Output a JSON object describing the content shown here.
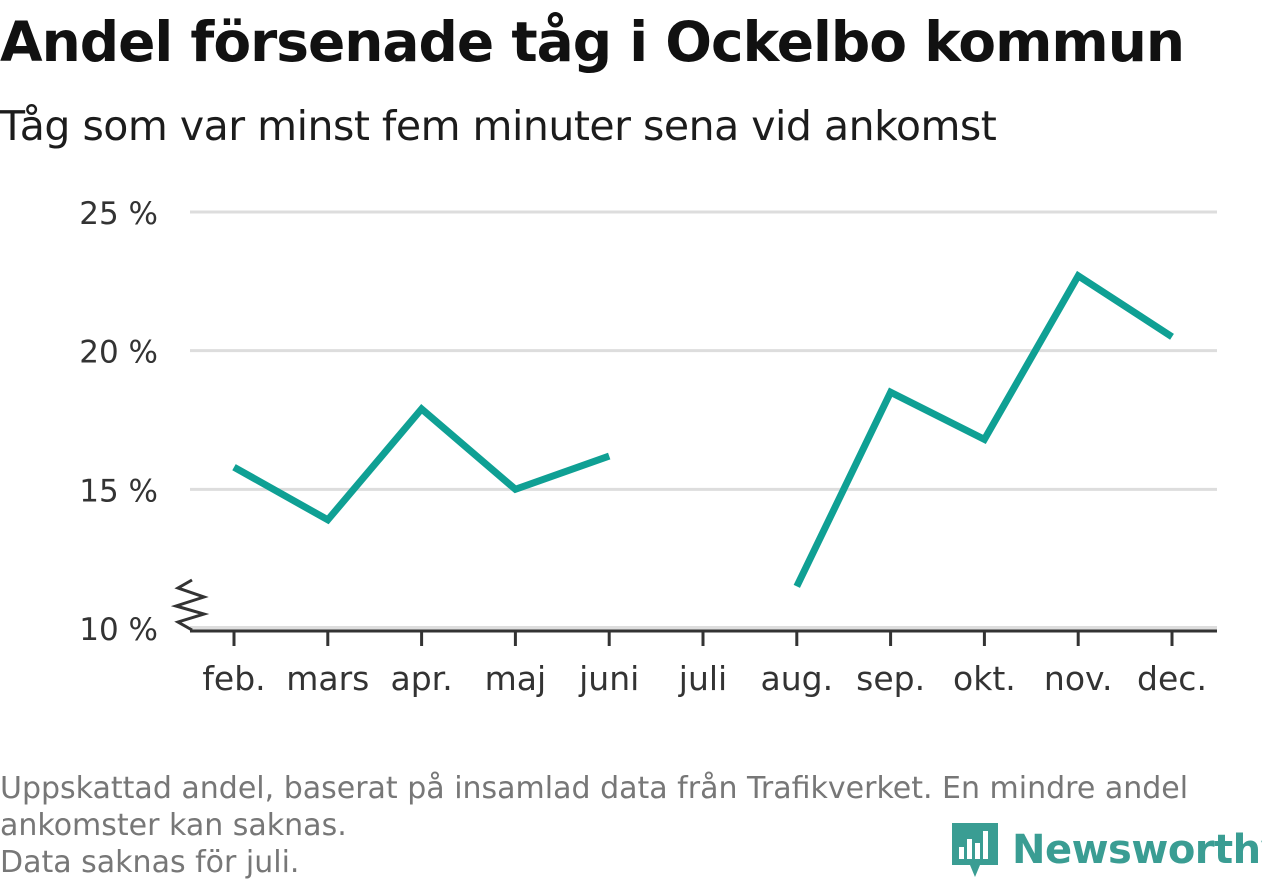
{
  "title": "Andel försenade tåg i Ockelbo kommun",
  "subtitle": "Tåg som var minst fem minuter sena vid ankomst",
  "footnote": {
    "line1": "Uppskattad andel, baserat på insamlad data från Trafikverket. En mindre andel",
    "line2": "ankomster kan saknas.",
    "line3": "Data saknas för juli."
  },
  "logo": {
    "text": "Newsworthy",
    "icon": "bar-chart-speech-bubble-icon",
    "color": "#3a9d93"
  },
  "colors": {
    "line": "#0fa094",
    "grid": "#dddddd",
    "axis": "#333333",
    "text": "#333333"
  },
  "chart_data": {
    "type": "line",
    "categories": [
      "feb.",
      "mars",
      "apr.",
      "maj",
      "juni",
      "juli",
      "aug.",
      "sep.",
      "okt.",
      "nov.",
      "dec."
    ],
    "series": [
      {
        "values": [
          15.8,
          13.9,
          17.9,
          15.0,
          16.2,
          null,
          11.5,
          18.5,
          16.8,
          22.7,
          20.5
        ]
      }
    ],
    "y_ticks": [
      10,
      15,
      20,
      25
    ],
    "y_tick_suffix": " %",
    "ylim": [
      10,
      25
    ],
    "y_axis_break": true,
    "grid": true,
    "xlabel": "",
    "ylabel": ""
  }
}
